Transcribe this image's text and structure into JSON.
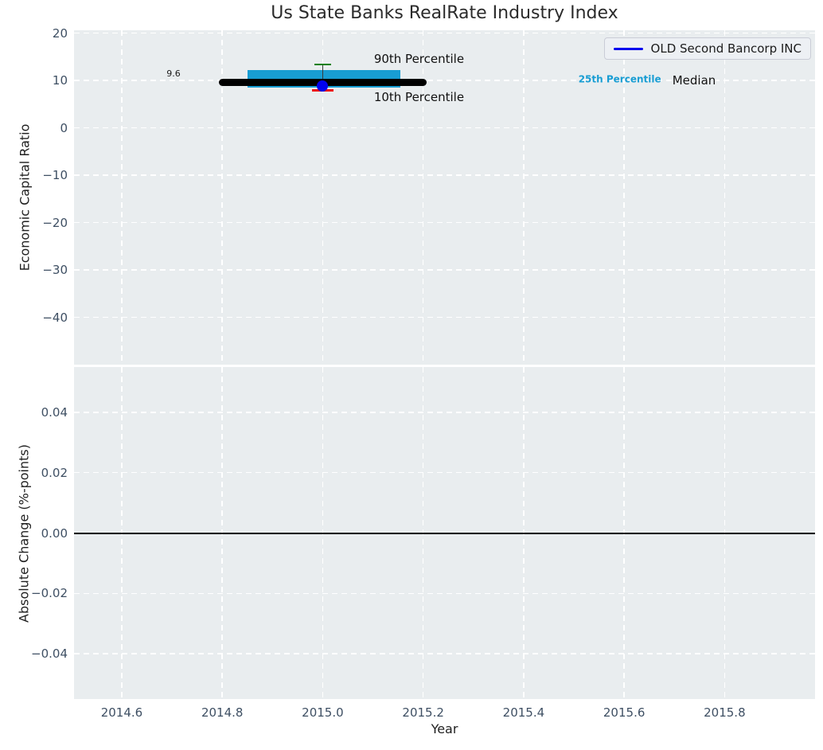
{
  "colors": {
    "background": "#ffffff",
    "axes_bg": "#e9edef",
    "grid": "#ffffff",
    "tick_label": "#3e4f63",
    "text": "#1f1f1f",
    "median_line": "#000000",
    "iqr_bar": "#189dd3",
    "p90_cap": "#098009",
    "p10_cap": "#ee1111",
    "company_marker": "#0202ee",
    "zero_line": "#000000"
  },
  "chart_data": [
    {
      "type": "box",
      "title": "Us State Banks RealRate Industry Index",
      "ylabel": "Economic Capital Ratio",
      "xlabel": "",
      "xlim": [
        2014.505,
        2015.98
      ],
      "ylim": [
        -50,
        20.59
      ],
      "grid": true,
      "grid_style": "dashed-white",
      "xticks": [
        2014.6,
        2014.8,
        2015.0,
        2015.2,
        2015.4,
        2015.6,
        2015.8
      ],
      "xticklabels_shown": false,
      "yticks": [
        {
          "v": 20,
          "label": "20"
        },
        {
          "v": 10,
          "label": "10"
        },
        {
          "v": 0,
          "label": "0"
        },
        {
          "v": -10,
          "label": "−10"
        },
        {
          "v": -20,
          "label": "−20"
        },
        {
          "v": -30,
          "label": "−30"
        },
        {
          "v": -40,
          "label": "−40"
        }
      ],
      "box": {
        "x": 2015.0,
        "median": 9.6,
        "q1": 8.5,
        "q3": 12.2,
        "p10": 7.9,
        "p90": 13.4,
        "company_value": 8.9,
        "median_span": [
          2014.8,
          2015.2
        ],
        "iqr_span": [
          2014.85,
          2015.155
        ],
        "p90_cap_halfwidth": 0.016,
        "p10_cap_halfwidth": 0.021
      },
      "legend": {
        "label": "OLD Second Bancorp INC",
        "position": "upper right"
      },
      "annotations": [
        {
          "text": "9.6",
          "x": 2014.703,
          "y": 11.35,
          "align": "center",
          "color": "#1a1a1a",
          "size": 11,
          "weight": "normal"
        },
        {
          "text": "90th Percentile",
          "x": 2015.102,
          "y": 14.54,
          "align": "left",
          "color": "#111111",
          "size": 15,
          "weight": "normal"
        },
        {
          "text": "10th Percentile",
          "x": 2015.102,
          "y": 6.48,
          "align": "left",
          "color": "#111111",
          "size": 15,
          "weight": "normal"
        },
        {
          "text": "25th Percentile",
          "x": 2015.509,
          "y": 10.17,
          "align": "left",
          "color": "#189dd3",
          "size": 12,
          "weight": "bold"
        },
        {
          "text": "Median",
          "x": 2015.696,
          "y": 10.05,
          "align": "left",
          "color": "#111111",
          "size": 15,
          "weight": "normal"
        }
      ]
    },
    {
      "type": "line",
      "title": "",
      "ylabel": "Absolute Change (%-points)",
      "xlabel": "Year",
      "xlim": [
        2014.505,
        2015.98
      ],
      "ylim": [
        -0.055,
        0.055
      ],
      "grid": true,
      "grid_style": "dashed-white",
      "xticks": [
        {
          "v": 2014.6,
          "label": "2014.6"
        },
        {
          "v": 2014.8,
          "label": "2014.8"
        },
        {
          "v": 2015.0,
          "label": "2015.0"
        },
        {
          "v": 2015.2,
          "label": "2015.2"
        },
        {
          "v": 2015.4,
          "label": "2015.4"
        },
        {
          "v": 2015.6,
          "label": "2015.6"
        },
        {
          "v": 2015.8,
          "label": "2015.8"
        }
      ],
      "yticks": [
        {
          "v": 0.04,
          "label": "0.04"
        },
        {
          "v": 0.02,
          "label": "0.02"
        },
        {
          "v": 0.0,
          "label": "0.00"
        },
        {
          "v": -0.02,
          "label": "−0.02"
        },
        {
          "v": -0.04,
          "label": "−0.04"
        }
      ],
      "zero_line": 0.0,
      "series": [
        {
          "name": "OLD Second Bancorp INC",
          "x": [
            2014.8,
            2015.2
          ],
          "y": [
            0.0,
            0.0
          ]
        }
      ]
    }
  ]
}
